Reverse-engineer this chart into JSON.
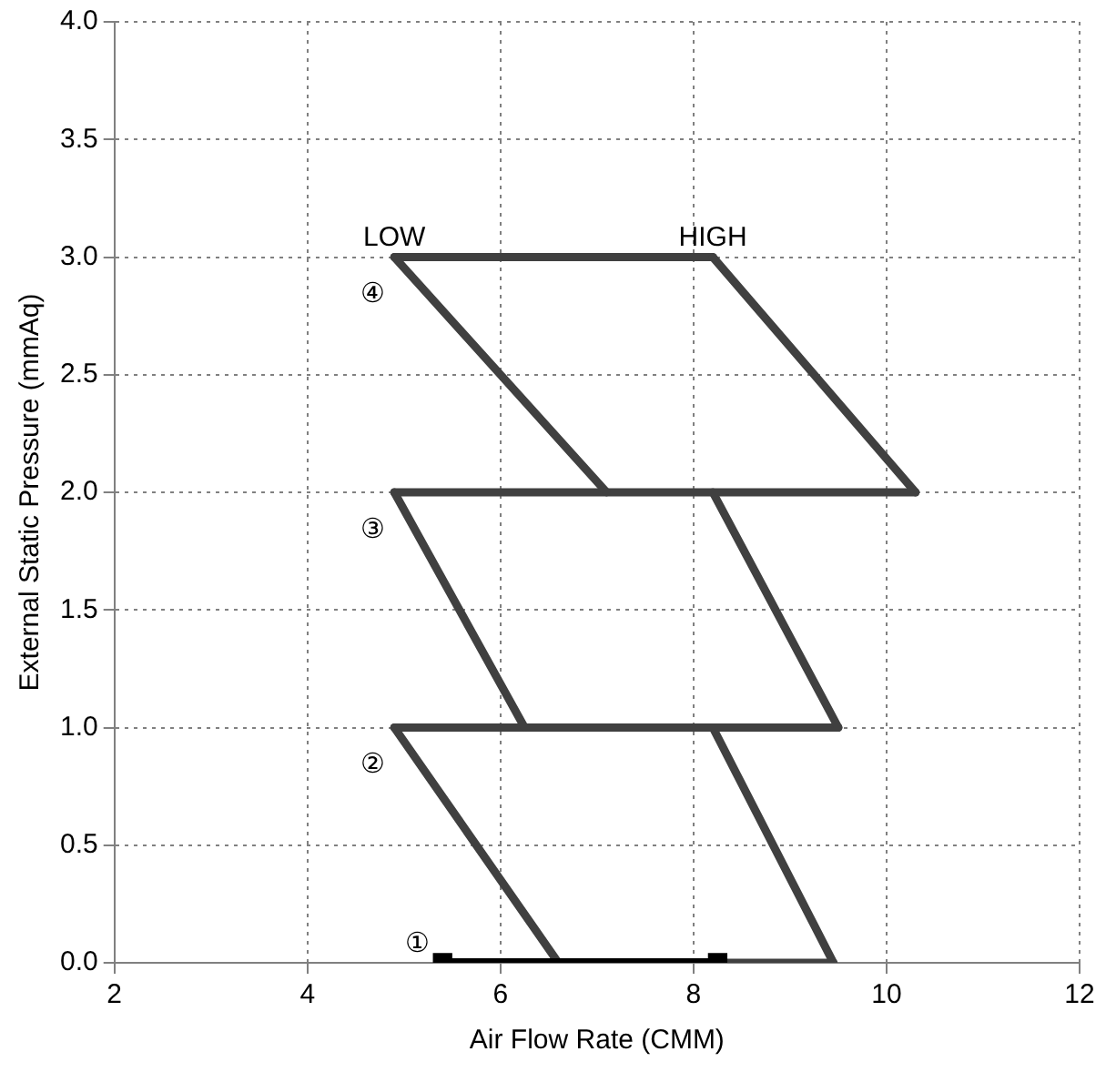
{
  "chart_data": {
    "type": "line",
    "xlabel": "Air Flow Rate (CMM)",
    "ylabel": "External Static Pressure (mmAq)",
    "xlim": [
      2,
      12
    ],
    "xticks": [
      2,
      4,
      6,
      8,
      10,
      12
    ],
    "ylim": [
      0,
      4
    ],
    "yticks": [
      {
        "value": 0,
        "label": "0.0"
      },
      {
        "value": 0.5,
        "label": "0.5"
      },
      {
        "value": 1,
        "label": "1.0"
      },
      {
        "value": 1.5,
        "label": "1.5"
      },
      {
        "value": 2,
        "label": "2.0"
      },
      {
        "value": 2.5,
        "label": "2.5"
      },
      {
        "value": 3,
        "label": "3.0"
      },
      {
        "value": 3.5,
        "label": "3.5"
      },
      {
        "value": 4,
        "label": "4.0"
      }
    ],
    "grid": true,
    "legend": false,
    "line_style": "solid",
    "series": [
      {
        "color": "#404040",
        "x": [
          4.9,
          7.1
        ],
        "values": [
          3,
          2
        ]
      },
      {
        "color": "#404040",
        "x": [
          8.2,
          10.3
        ],
        "values": [
          3,
          2
        ]
      },
      {
        "color": "#404040",
        "x": [
          4.9,
          8.2
        ],
        "values": [
          3,
          3
        ]
      },
      {
        "color": "#404040",
        "x": [
          4.9,
          10.3
        ],
        "values": [
          2,
          2
        ]
      },
      {
        "color": "#404040",
        "x": [
          4.9,
          6.25
        ],
        "values": [
          2,
          1
        ]
      },
      {
        "color": "#404040",
        "x": [
          8.2,
          9.5
        ],
        "values": [
          2,
          1
        ]
      },
      {
        "color": "#404040",
        "x": [
          4.9,
          9.5
        ],
        "values": [
          1,
          1
        ]
      },
      {
        "color": "#404040",
        "x": [
          4.9,
          6.6
        ],
        "values": [
          1,
          0
        ]
      },
      {
        "color": "#404040",
        "x": [
          8.2,
          9.45
        ],
        "values": [
          1,
          0
        ]
      },
      {
        "color": "#404040",
        "x": [
          8.25,
          9.45
        ],
        "values": [
          0,
          0
        ]
      },
      {
        "color": "#000000",
        "x": [
          5.4,
          8.25
        ],
        "values": [
          0,
          0
        ],
        "marker": "square"
      }
    ],
    "annotations": [
      {
        "text": "LOW",
        "x": 4.9,
        "y": 3.0
      },
      {
        "text": "HIGH",
        "x": 8.2,
        "y": 3.0
      },
      "④",
      "③",
      "②",
      "①"
    ]
  }
}
